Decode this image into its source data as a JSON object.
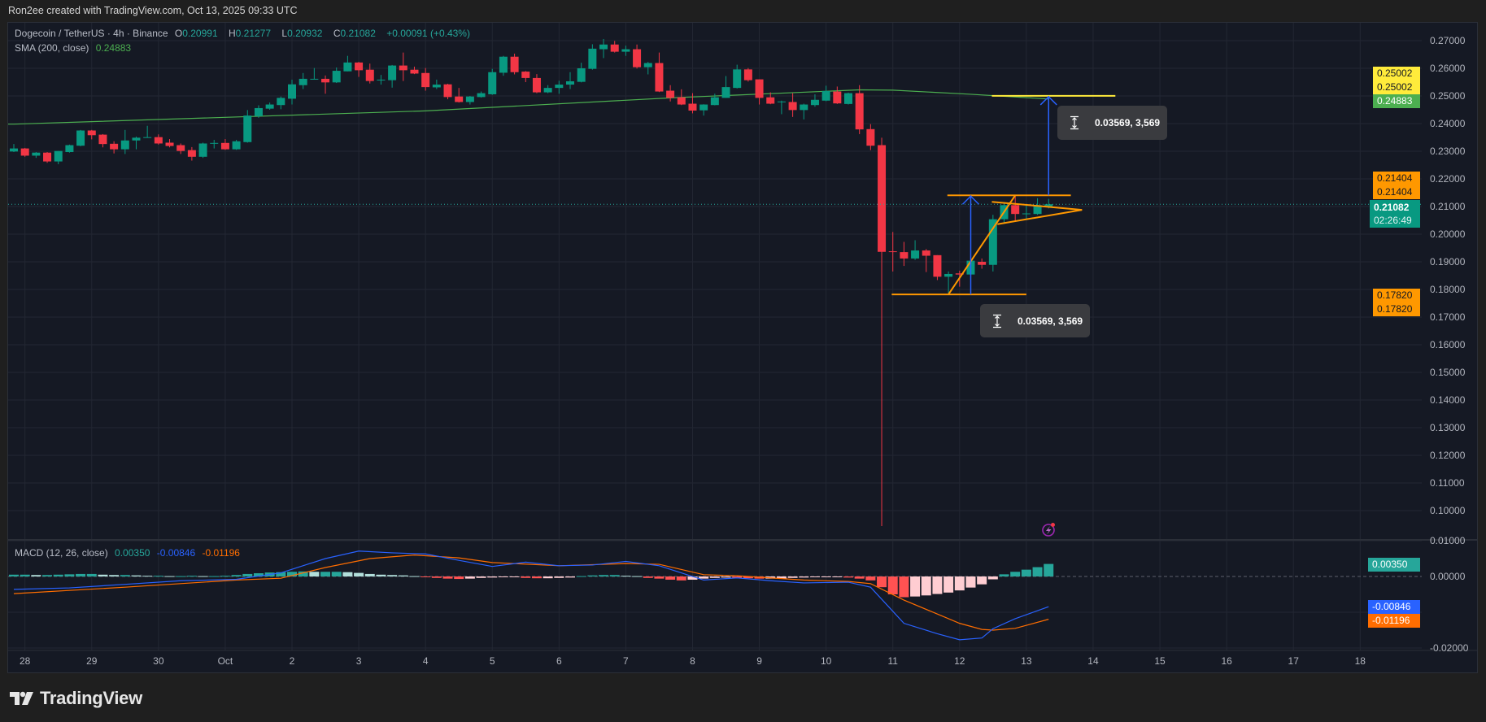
{
  "credit": "Ron2ee created with TradingView.com, Oct 13, 2025 09:33 UTC",
  "legend": {
    "symbol": "Dogecoin / TetherUS · 4h · Binance",
    "o_label": "O",
    "o": "0.20991",
    "h_label": "H",
    "h": "0.21277",
    "l_label": "L",
    "l": "0.20932",
    "c_label": "C",
    "c": "0.21082",
    "change": "+0.00091 (+0.43%)",
    "sma_label": "SMA (200, close)",
    "sma_value": "0.24883",
    "macd_label": "MACD (12, 26, close)",
    "macd_hist": "0.00350",
    "macd_line": "-0.00846",
    "macd_signal": "-0.01196"
  },
  "colors": {
    "up": "#089981",
    "down": "#f23645",
    "sma": "#4caf50",
    "macd": "#2962ff",
    "signal": "#ff6d00",
    "hist_up_strong": "#26a69a",
    "hist_up_weak": "#b2dfdb",
    "hist_down_strong": "#ff5252",
    "hist_down_weak": "#ffcdd2",
    "drawing": "#ff9800",
    "target": "#ffeb3b",
    "arrow": "#2962ff",
    "background": "#151924",
    "grid": "#232733"
  },
  "chart_data": [
    {
      "type": "candlestick",
      "interval": "4h",
      "price_ticks": [
        "0.27000",
        "0.26000",
        "0.25000",
        "0.24000",
        "0.23000",
        "0.22000",
        "0.21000",
        "0.20000",
        "0.19000",
        "0.18000",
        "0.17000",
        "0.16000",
        "0.15000",
        "0.14000",
        "0.13000",
        "0.12000",
        "0.11000",
        "0.10000"
      ],
      "ylim": [
        0.095,
        0.2735
      ],
      "x_ticks": [
        "28",
        "29",
        "30",
        "Oct",
        "2",
        "3",
        "4",
        "5",
        "6",
        "7",
        "8",
        "9",
        "10",
        "11",
        "12",
        "13",
        "14",
        "15",
        "16",
        "17",
        "18"
      ],
      "candles": [
        [
          0.2299,
          0.2326,
          0.2297,
          0.231
        ],
        [
          0.231,
          0.2312,
          0.228,
          0.2284
        ],
        [
          0.2284,
          0.2297,
          0.2276,
          0.2295
        ],
        [
          0.2295,
          0.2297,
          0.2258,
          0.2263
        ],
        [
          0.2263,
          0.2301,
          0.2253,
          0.2301
        ],
        [
          0.2297,
          0.2324,
          0.2295,
          0.2322
        ],
        [
          0.232,
          0.2377,
          0.2318,
          0.2375
        ],
        [
          0.2375,
          0.2377,
          0.2343,
          0.2358
        ],
        [
          0.236,
          0.2362,
          0.2314,
          0.2326
        ],
        [
          0.2327,
          0.2336,
          0.2292,
          0.2307
        ],
        [
          0.2307,
          0.2377,
          0.229,
          0.2339
        ],
        [
          0.2339,
          0.2353,
          0.2307,
          0.2349
        ],
        [
          0.2349,
          0.2392,
          0.2349,
          0.2351
        ],
        [
          0.2351,
          0.2361,
          0.2324,
          0.2328
        ],
        [
          0.2331,
          0.2344,
          0.2314,
          0.2319
        ],
        [
          0.2322,
          0.2328,
          0.229,
          0.2301
        ],
        [
          0.2304,
          0.2315,
          0.2266,
          0.228
        ],
        [
          0.228,
          0.2331,
          0.2276,
          0.2328
        ],
        [
          0.2328,
          0.2341,
          0.231,
          0.233
        ],
        [
          0.233,
          0.2344,
          0.2305,
          0.2307
        ],
        [
          0.2307,
          0.2341,
          0.2305,
          0.2336
        ],
        [
          0.2333,
          0.2449,
          0.2331,
          0.2429
        ],
        [
          0.2427,
          0.2466,
          0.2421,
          0.2456
        ],
        [
          0.2454,
          0.2476,
          0.245,
          0.2469
        ],
        [
          0.2467,
          0.2498,
          0.2452,
          0.2493
        ],
        [
          0.249,
          0.2559,
          0.2469,
          0.2542
        ],
        [
          0.2539,
          0.2583,
          0.2525,
          0.2562
        ],
        [
          0.2561,
          0.2601,
          0.256,
          0.2562
        ],
        [
          0.2562,
          0.2574,
          0.2508,
          0.2549
        ],
        [
          0.2549,
          0.2603,
          0.2547,
          0.2591
        ],
        [
          0.2589,
          0.2645,
          0.2589,
          0.2621
        ],
        [
          0.2621,
          0.2623,
          0.2569,
          0.2593
        ],
        [
          0.2595,
          0.2617,
          0.2545,
          0.2554
        ],
        [
          0.2556,
          0.2576,
          0.2541,
          0.2559
        ],
        [
          0.2557,
          0.2612,
          0.253,
          0.261
        ],
        [
          0.261,
          0.2657,
          0.2554,
          0.2593
        ],
        [
          0.2595,
          0.2606,
          0.2579,
          0.2581
        ],
        [
          0.2583,
          0.2601,
          0.2519,
          0.2532
        ],
        [
          0.2531,
          0.2559,
          0.2525,
          0.2541
        ],
        [
          0.2542,
          0.2544,
          0.2488,
          0.2496
        ],
        [
          0.2498,
          0.2529,
          0.2476,
          0.2478
        ],
        [
          0.2478,
          0.25,
          0.2469,
          0.2498
        ],
        [
          0.2496,
          0.2516,
          0.2494,
          0.251
        ],
        [
          0.2506,
          0.2598,
          0.2504,
          0.2586
        ],
        [
          0.2584,
          0.2645,
          0.2573,
          0.2642
        ],
        [
          0.2642,
          0.2653,
          0.2578,
          0.2586
        ],
        [
          0.2588,
          0.259,
          0.255,
          0.2565
        ],
        [
          0.2565,
          0.2579,
          0.251,
          0.2513
        ],
        [
          0.2513,
          0.2539,
          0.251,
          0.2529
        ],
        [
          0.2529,
          0.2555,
          0.2508,
          0.2541
        ],
        [
          0.2541,
          0.2586,
          0.2525,
          0.2553
        ],
        [
          0.2551,
          0.262,
          0.2549,
          0.26
        ],
        [
          0.2598,
          0.2687,
          0.2595,
          0.2671
        ],
        [
          0.2669,
          0.2706,
          0.2637,
          0.2686
        ],
        [
          0.2686,
          0.2699,
          0.2657,
          0.266
        ],
        [
          0.266,
          0.2682,
          0.2645,
          0.2669
        ],
        [
          0.2669,
          0.2686,
          0.2599,
          0.2604
        ],
        [
          0.2604,
          0.2623,
          0.2578,
          0.2619
        ],
        [
          0.2619,
          0.2657,
          0.2514,
          0.2516
        ],
        [
          0.2519,
          0.2539,
          0.248,
          0.2493
        ],
        [
          0.2495,
          0.2524,
          0.2467,
          0.2469
        ],
        [
          0.2472,
          0.251,
          0.2437,
          0.2447
        ],
        [
          0.2448,
          0.247,
          0.2429,
          0.2469
        ],
        [
          0.2467,
          0.2508,
          0.2466,
          0.2495
        ],
        [
          0.2493,
          0.2572,
          0.2493,
          0.2532
        ],
        [
          0.2529,
          0.2613,
          0.2527,
          0.2596
        ],
        [
          0.2596,
          0.2601,
          0.2552,
          0.2557
        ],
        [
          0.256,
          0.256,
          0.2469,
          0.2493
        ],
        [
          0.2495,
          0.2513,
          0.247,
          0.2472
        ],
        [
          0.2478,
          0.2483,
          0.2434,
          0.248
        ],
        [
          0.2478,
          0.251,
          0.2424,
          0.2449
        ],
        [
          0.2449,
          0.2472,
          0.2415,
          0.2469
        ],
        [
          0.2467,
          0.2506,
          0.2461,
          0.2486
        ],
        [
          0.2483,
          0.2537,
          0.2481,
          0.2518
        ],
        [
          0.2516,
          0.2534,
          0.2471,
          0.2473
        ],
        [
          0.2471,
          0.2512,
          0.2469,
          0.251
        ],
        [
          0.251,
          0.2539,
          0.2362,
          0.2379
        ],
        [
          0.238,
          0.2398,
          0.2304,
          0.232
        ],
        [
          0.2322,
          0.2349,
          0.0944,
          0.1936
        ],
        [
          0.1938,
          0.2008,
          0.1865,
          0.1936
        ],
        [
          0.1935,
          0.1972,
          0.1885,
          0.1912
        ],
        [
          0.1912,
          0.1978,
          0.1907,
          0.1941
        ],
        [
          0.1941,
          0.1946,
          0.1863,
          0.1922
        ],
        [
          0.1924,
          0.1924,
          0.1834,
          0.1846
        ],
        [
          0.1846,
          0.1865,
          0.1787,
          0.1856
        ],
        [
          0.1858,
          0.1868,
          0.181,
          0.1854
        ],
        [
          0.1854,
          0.1904,
          0.1854,
          0.1904
        ],
        [
          0.19,
          0.1912,
          0.1875,
          0.1889
        ],
        [
          0.1889,
          0.207,
          0.1865,
          0.2054
        ],
        [
          0.2054,
          0.2112,
          0.2041,
          0.2105
        ],
        [
          0.2105,
          0.2141,
          0.2049,
          0.2073
        ],
        [
          0.2073,
          0.2105,
          0.2051,
          0.2075
        ],
        [
          0.2073,
          0.213,
          0.207,
          0.2105
        ],
        [
          0.20991,
          0.21277,
          0.20932,
          0.21082
        ]
      ],
      "sma200": [
        [
          0,
          0.2398
        ],
        [
          37,
          0.2446
        ],
        [
          59,
          0.2493
        ],
        [
          76,
          0.2522
        ],
        [
          79,
          0.2521
        ],
        [
          86,
          0.2506
        ],
        [
          93,
          0.2489
        ]
      ],
      "last_price": {
        "value": "0.21082",
        "countdown": "02:26:49"
      },
      "price_badges": [
        {
          "text": "0.25002",
          "kind": "target"
        },
        {
          "text": "0.25002",
          "kind": "target"
        },
        {
          "text": "0.24883",
          "kind": "sma"
        },
        {
          "text": "0.21404",
          "kind": "drawing"
        },
        {
          "text": "0.21404",
          "kind": "drawing"
        },
        {
          "text": "0.17820",
          "kind": "drawing"
        },
        {
          "text": "0.17820",
          "kind": "drawing"
        }
      ],
      "drawings": {
        "lines": [
          {
            "kind": "target",
            "from": [
              87.9,
              0.25002
            ],
            "to": [
              99,
              0.25002
            ]
          },
          {
            "kind": "drawing",
            "from": [
              83.9,
              0.21404
            ],
            "to": [
              95,
              0.21404
            ]
          },
          {
            "kind": "drawing",
            "from": [
              78.9,
              0.1782
            ],
            "to": [
              91,
              0.1782
            ]
          },
          {
            "kind": "drawing",
            "from": [
              84,
              0.1782
            ],
            "to": [
              90,
              0.21404
            ]
          },
          {
            "kind": "drawing",
            "from": [
              87.9,
              0.2117
            ],
            "to": [
              96,
              0.2088
            ]
          },
          {
            "kind": "drawing",
            "from": [
              88.4,
              0.2036
            ],
            "to": [
              96,
              0.2088
            ]
          }
        ],
        "arrows": [
          {
            "at": 86,
            "from": 0.1782,
            "to": 0.21404
          },
          {
            "at": 93,
            "from": 0.21404,
            "to": 0.25002
          }
        ],
        "measures": [
          {
            "text": "0.03569, 3,569",
            "icon": "height-measure-icon"
          },
          {
            "text": "0.03569, 3,569",
            "icon": "height-measure-icon"
          }
        ]
      }
    },
    {
      "type": "macd",
      "params": "12, 26, close",
      "y_ticks": [
        "0.01000",
        "0.00000",
        "-0.02000"
      ],
      "badges": [
        {
          "text": "0.00350",
          "kind": "hist"
        },
        {
          "text": "-0.00846",
          "kind": "macd"
        },
        {
          "text": "-0.01196",
          "kind": "signal"
        }
      ],
      "histogram": [
        0.0005,
        0.0005,
        0.0004,
        0.0004,
        0.0005,
        0.0006,
        0.0007,
        0.0007,
        0.0005,
        0.0004,
        0.0004,
        0.0003,
        0.0002,
        0.0002,
        0.0001,
        0.0001,
        0.0002,
        0.0001,
        0.0001,
        0.0002,
        0.0004,
        0.0007,
        0.0009,
        0.0011,
        0.0012,
        0.0013,
        0.0014,
        0.0013,
        0.0013,
        0.0013,
        0.0012,
        0.001,
        0.0007,
        0.0005,
        0.0004,
        0.0003,
        0.0001,
        -0.0002,
        -0.0004,
        -0.0006,
        -0.0007,
        -0.0006,
        -0.0004,
        -0.0003,
        -0.0002,
        -0.0002,
        -0.0004,
        -0.0005,
        -0.0005,
        -0.0004,
        -0.0003,
        0.0001,
        0.0003,
        0.0004,
        0.0004,
        0.0002,
        0.0001,
        -0.0004,
        -0.0006,
        -0.0009,
        -0.0011,
        -0.0009,
        -0.0006,
        -0.0004,
        -0.0003,
        -0.0004,
        -0.0005,
        -0.0006,
        -0.0006,
        -0.0006,
        -0.0004,
        -0.0003,
        -0.0002,
        -0.0002,
        -0.0001,
        -0.0003,
        -0.0006,
        -0.0011,
        -0.003,
        -0.005,
        -0.0058,
        -0.0056,
        -0.0053,
        -0.0049,
        -0.0045,
        -0.0039,
        -0.0031,
        -0.0022,
        -0.0008,
        0.0006,
        0.0013,
        0.0019,
        0.0026,
        0.0035
      ],
      "macd": [
        [
          0,
          -0.0036
        ],
        [
          5,
          -0.0032
        ],
        [
          10,
          -0.0022
        ],
        [
          15,
          -0.0012
        ],
        [
          20,
          -0.0008
        ],
        [
          24,
          0.001
        ],
        [
          28,
          0.005
        ],
        [
          31,
          0.0071
        ],
        [
          34,
          0.0066
        ],
        [
          37,
          0.0063
        ],
        [
          40,
          0.0045
        ],
        [
          43,
          0.0028
        ],
        [
          46,
          0.004
        ],
        [
          49,
          0.003
        ],
        [
          52,
          0.0032
        ],
        [
          55,
          0.0042
        ],
        [
          58,
          0.003
        ],
        [
          62,
          -0.001
        ],
        [
          65,
          -0.0004
        ],
        [
          68,
          -0.0012
        ],
        [
          71,
          -0.0018
        ],
        [
          75,
          -0.0016
        ],
        [
          77,
          -0.003
        ],
        [
          80,
          -0.0131
        ],
        [
          83,
          -0.016
        ],
        [
          85,
          -0.0177
        ],
        [
          87,
          -0.0172
        ],
        [
          88,
          -0.0146
        ],
        [
          90,
          -0.0118
        ],
        [
          93,
          -0.00846
        ]
      ],
      "signal": [
        [
          0,
          -0.0048
        ],
        [
          10,
          -0.003
        ],
        [
          20,
          -0.001
        ],
        [
          24,
          -0.0005
        ],
        [
          28,
          0.0025
        ],
        [
          32,
          0.005
        ],
        [
          36,
          0.006
        ],
        [
          40,
          0.0052
        ],
        [
          43,
          0.0039
        ],
        [
          49,
          0.003
        ],
        [
          55,
          0.0036
        ],
        [
          58,
          0.0034
        ],
        [
          62,
          0.0005
        ],
        [
          65,
          0.0002
        ],
        [
          71,
          -0.001
        ],
        [
          75,
          -0.0014
        ],
        [
          77,
          -0.002
        ],
        [
          80,
          -0.0066
        ],
        [
          83,
          -0.0105
        ],
        [
          85,
          -0.0131
        ],
        [
          87,
          -0.0148
        ],
        [
          88,
          -0.015
        ],
        [
          90,
          -0.0145
        ],
        [
          93,
          -0.01196
        ]
      ]
    }
  ],
  "icons": {
    "alert": "lightning-alert-icon",
    "logo": "tradingview-logo-icon"
  },
  "brand": "TradingView"
}
